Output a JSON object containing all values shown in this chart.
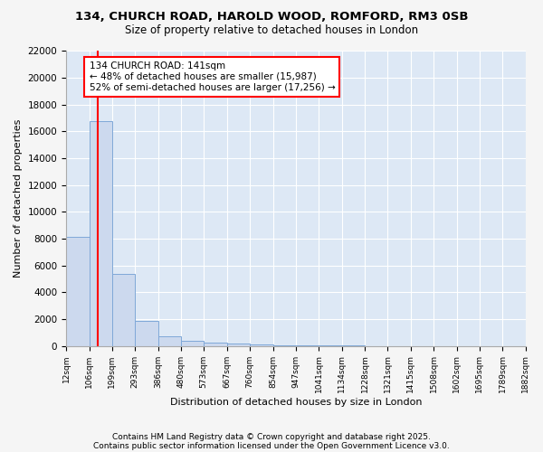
{
  "title_line1": "134, CHURCH ROAD, HAROLD WOOD, ROMFORD, RM3 0SB",
  "title_line2": "Size of property relative to detached houses in London",
  "xlabel": "Distribution of detached houses by size in London",
  "ylabel": "Number of detached properties",
  "bar_color": "#ccd9ee",
  "bar_edge_color": "#7fa8d8",
  "background_color": "#dde8f5",
  "grid_color": "#ffffff",
  "fig_bg_color": "#f5f5f5",
  "red_line_x": 141,
  "annotation_text": "134 CHURCH ROAD: 141sqm\n← 48% of detached houses are smaller (15,987)\n52% of semi-detached houses are larger (17,256) →",
  "footer_line1": "Contains HM Land Registry data © Crown copyright and database right 2025.",
  "footer_line2": "Contains public sector information licensed under the Open Government Licence v3.0.",
  "bin_edges": [
    12,
    106,
    199,
    293,
    386,
    480,
    573,
    667,
    760,
    854,
    947,
    1041,
    1134,
    1228,
    1321,
    1415,
    1508,
    1602,
    1695,
    1789,
    1882
  ],
  "bar_heights": [
    8150,
    16750,
    5400,
    1850,
    720,
    400,
    220,
    170,
    120,
    65,
    45,
    20,
    10,
    5,
    3,
    2,
    1,
    1,
    1,
    1
  ],
  "ylim": [
    0,
    22000
  ],
  "yticks": [
    0,
    2000,
    4000,
    6000,
    8000,
    10000,
    12000,
    14000,
    16000,
    18000,
    20000,
    22000
  ]
}
